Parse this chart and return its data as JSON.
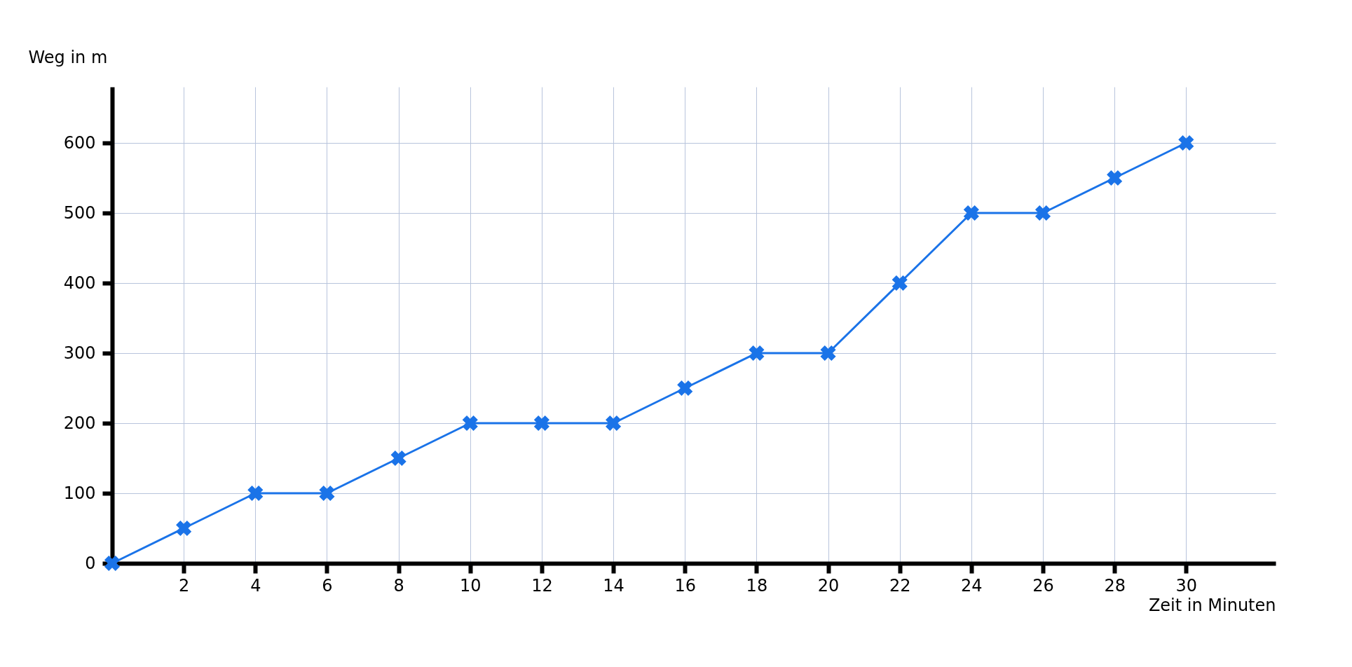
{
  "chart_data": {
    "type": "line",
    "xlabel": "Zeit in Minuten",
    "ylabel": "Weg in m",
    "x": [
      0,
      2,
      4,
      6,
      8,
      10,
      12,
      14,
      16,
      18,
      20,
      22,
      24,
      26,
      28,
      30
    ],
    "series": [
      {
        "color": "#1a73e8",
        "values": [
          0,
          50,
          100,
          100,
          150,
          200,
          200,
          200,
          250,
          300,
          300,
          400,
          500,
          500,
          550,
          600
        ]
      }
    ],
    "xlim": [
      0,
      32.5
    ],
    "ylim": [
      0,
      680
    ],
    "xticks": [
      2,
      4,
      6,
      8,
      10,
      12,
      14,
      16,
      18,
      20,
      22,
      24,
      26,
      28,
      30
    ],
    "yticks": [
      0,
      100,
      200,
      300,
      400,
      500,
      600
    ],
    "grid": true,
    "marker": "cross",
    "line_style": "solid"
  }
}
